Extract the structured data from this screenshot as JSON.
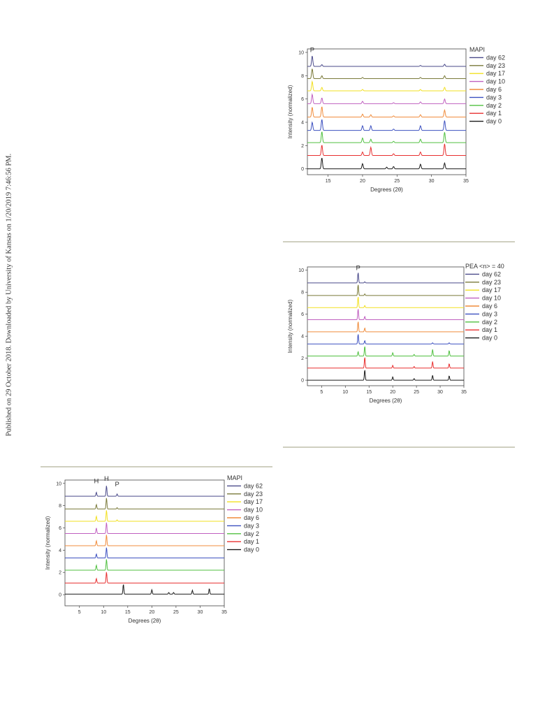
{
  "page": {
    "sidebar_text": "Published on 29 October 2018. Downloaded by University of Kansas on 1/20/2019 7:46:56 PM."
  },
  "chart_data": [
    {
      "type": "line",
      "title": "",
      "xlabel": "Degrees (2θ)",
      "ylabel": "Intensity (normalized)",
      "xlim": [
        12,
        35
      ],
      "ylim": [
        -0.5,
        10.3
      ],
      "xticks": [
        15,
        20,
        25,
        30,
        35
      ],
      "yticks": [
        0,
        2,
        4,
        6,
        8,
        10
      ],
      "grid": false,
      "legend_position": "right",
      "legend_title": "MAPI",
      "annotations": [
        {
          "text": "P",
          "x": 12.7,
          "y": 9.9
        }
      ],
      "series": [
        {
          "name": "day 62",
          "color": "#4a4a8a",
          "baseline": 8.8,
          "peaks": [
            [
              12.7,
              0.9
            ],
            [
              14.1,
              0.15
            ],
            [
              28.4,
              0.08
            ],
            [
              31.9,
              0.18
            ]
          ]
        },
        {
          "name": "day 23",
          "color": "#7a7a3a",
          "baseline": 7.75,
          "peaks": [
            [
              12.7,
              0.85
            ],
            [
              14.1,
              0.25
            ],
            [
              20.0,
              0.1
            ],
            [
              28.4,
              0.1
            ],
            [
              31.9,
              0.25
            ]
          ]
        },
        {
          "name": "day 17",
          "color": "#f2e020",
          "baseline": 6.7,
          "peaks": [
            [
              12.7,
              0.8
            ],
            [
              14.1,
              0.3
            ],
            [
              20.0,
              0.12
            ],
            [
              28.4,
              0.12
            ],
            [
              31.9,
              0.3
            ]
          ]
        },
        {
          "name": "day 10",
          "color": "#c060c0",
          "baseline": 5.6,
          "peaks": [
            [
              12.7,
              0.8
            ],
            [
              14.1,
              0.5
            ],
            [
              20.0,
              0.2
            ],
            [
              24.5,
              0.08
            ],
            [
              28.4,
              0.15
            ],
            [
              31.9,
              0.4
            ]
          ]
        },
        {
          "name": "day 6",
          "color": "#f08c3c",
          "baseline": 4.45,
          "peaks": [
            [
              12.7,
              0.85
            ],
            [
              14.1,
              0.9
            ],
            [
              20.0,
              0.25
            ],
            [
              21.2,
              0.2
            ],
            [
              24.5,
              0.1
            ],
            [
              28.4,
              0.2
            ],
            [
              31.9,
              0.6
            ]
          ]
        },
        {
          "name": "day 3",
          "color": "#3c50c0",
          "baseline": 3.3,
          "peaks": [
            [
              12.7,
              0.7
            ],
            [
              14.1,
              0.95
            ],
            [
              20.0,
              0.4
            ],
            [
              21.2,
              0.4
            ],
            [
              24.5,
              0.12
            ],
            [
              28.4,
              0.4
            ],
            [
              31.9,
              0.85
            ]
          ]
        },
        {
          "name": "day 2",
          "color": "#50c040",
          "baseline": 2.25,
          "peaks": [
            [
              14.1,
              0.95
            ],
            [
              20.0,
              0.4
            ],
            [
              21.2,
              0.3
            ],
            [
              24.5,
              0.12
            ],
            [
              28.4,
              0.3
            ],
            [
              31.9,
              0.9
            ]
          ]
        },
        {
          "name": "day 1",
          "color": "#e83030",
          "baseline": 1.15,
          "peaks": [
            [
              14.1,
              0.9
            ],
            [
              20.0,
              0.3
            ],
            [
              21.2,
              0.7
            ],
            [
              24.5,
              0.15
            ],
            [
              28.4,
              0.3
            ],
            [
              31.9,
              1.0
            ]
          ]
        },
        {
          "name": "day 0",
          "color": "#1a1a1a",
          "baseline": 0.0,
          "peaks": [
            [
              14.1,
              0.95
            ],
            [
              20.0,
              0.45
            ],
            [
              23.5,
              0.15
            ],
            [
              24.5,
              0.2
            ],
            [
              28.4,
              0.4
            ],
            [
              31.9,
              0.5
            ]
          ]
        }
      ]
    },
    {
      "type": "line",
      "title": "",
      "xlabel": "Degrees (2θ)",
      "ylabel": "Intensity (normalized)",
      "xlim": [
        2,
        35
      ],
      "ylim": [
        -0.5,
        10.3
      ],
      "xticks": [
        5,
        10,
        15,
        20,
        25,
        30,
        35
      ],
      "yticks": [
        0,
        2,
        4,
        6,
        8,
        10
      ],
      "grid": false,
      "legend_position": "right",
      "legend_title": "PEA <n> = 40",
      "annotations": [
        {
          "text": "P",
          "x": 12.7,
          "y": 9.9
        }
      ],
      "series": [
        {
          "name": "day 62",
          "color": "#4a4a8a",
          "baseline": 8.85,
          "peaks": [
            [
              12.7,
              0.95
            ],
            [
              14.1,
              0.1
            ]
          ]
        },
        {
          "name": "day 23",
          "color": "#7a7a3a",
          "baseline": 7.7,
          "peaks": [
            [
              12.7,
              1.0
            ],
            [
              14.1,
              0.15
            ]
          ]
        },
        {
          "name": "day 17",
          "color": "#f2e020",
          "baseline": 6.6,
          "peaks": [
            [
              12.7,
              1.0
            ],
            [
              14.1,
              0.2
            ]
          ]
        },
        {
          "name": "day 10",
          "color": "#c060c0",
          "baseline": 5.5,
          "peaks": [
            [
              12.7,
              1.0
            ],
            [
              14.1,
              0.3
            ]
          ]
        },
        {
          "name": "day 6",
          "color": "#f08c3c",
          "baseline": 4.4,
          "peaks": [
            [
              12.7,
              0.95
            ],
            [
              14.1,
              0.35
            ]
          ]
        },
        {
          "name": "day 3",
          "color": "#3c50c0",
          "baseline": 3.3,
          "peaks": [
            [
              12.7,
              0.9
            ],
            [
              14.1,
              0.3
            ],
            [
              28.4,
              0.1
            ],
            [
              31.9,
              0.1
            ]
          ]
        },
        {
          "name": "day 2",
          "color": "#50c040",
          "baseline": 2.2,
          "peaks": [
            [
              12.7,
              0.4
            ],
            [
              14.1,
              0.9
            ],
            [
              20.0,
              0.3
            ],
            [
              24.5,
              0.15
            ],
            [
              28.4,
              0.6
            ],
            [
              31.9,
              0.5
            ]
          ]
        },
        {
          "name": "day 1",
          "color": "#e83030",
          "baseline": 1.1,
          "peaks": [
            [
              14.1,
              1.0
            ],
            [
              20.0,
              0.25
            ],
            [
              24.5,
              0.15
            ],
            [
              28.4,
              0.6
            ],
            [
              31.9,
              0.4
            ]
          ]
        },
        {
          "name": "day 0",
          "color": "#1a1a1a",
          "baseline": 0.0,
          "peaks": [
            [
              14.1,
              0.95
            ],
            [
              20.0,
              0.3
            ],
            [
              24.5,
              0.15
            ],
            [
              28.4,
              0.45
            ],
            [
              31.9,
              0.4
            ]
          ]
        }
      ]
    },
    {
      "type": "line",
      "title": "",
      "xlabel": "Degrees (2θ)",
      "ylabel": "Intensity (normalized)",
      "xlim": [
        2,
        35
      ],
      "ylim": [
        -1,
        10.3
      ],
      "xticks": [
        5,
        10,
        15,
        20,
        25,
        30,
        35
      ],
      "yticks": [
        0,
        2,
        4,
        6,
        8,
        10
      ],
      "grid": false,
      "legend_position": "right",
      "legend_title": "MAPI",
      "annotations": [
        {
          "text": "H",
          "x": 8.5,
          "y": 9.9
        },
        {
          "text": "H",
          "x": 10.6,
          "y": 10.1
        },
        {
          "text": "P",
          "x": 12.8,
          "y": 9.6
        }
      ],
      "series": [
        {
          "name": "day 62",
          "color": "#4a4a8a",
          "baseline": 8.85,
          "peaks": [
            [
              8.5,
              0.35
            ],
            [
              10.6,
              0.95
            ],
            [
              12.8,
              0.2
            ]
          ]
        },
        {
          "name": "day 23",
          "color": "#7a7a3a",
          "baseline": 7.7,
          "peaks": [
            [
              8.5,
              0.4
            ],
            [
              10.6,
              1.0
            ],
            [
              12.8,
              0.12
            ]
          ]
        },
        {
          "name": "day 17",
          "color": "#f2e020",
          "baseline": 6.6,
          "peaks": [
            [
              8.5,
              0.45
            ],
            [
              10.6,
              1.0
            ],
            [
              12.8,
              0.12
            ]
          ]
        },
        {
          "name": "day 10",
          "color": "#c060c0",
          "baseline": 5.5,
          "peaks": [
            [
              8.5,
              0.5
            ],
            [
              10.6,
              1.0
            ]
          ]
        },
        {
          "name": "day 6",
          "color": "#f08c3c",
          "baseline": 4.4,
          "peaks": [
            [
              8.5,
              0.45
            ],
            [
              10.6,
              1.0
            ]
          ]
        },
        {
          "name": "day 3",
          "color": "#3c50c0",
          "baseline": 3.3,
          "peaks": [
            [
              8.5,
              0.35
            ],
            [
              10.6,
              0.95
            ]
          ]
        },
        {
          "name": "day 2",
          "color": "#50c040",
          "baseline": 2.2,
          "peaks": [
            [
              8.5,
              0.45
            ],
            [
              10.6,
              1.0
            ]
          ]
        },
        {
          "name": "day 1",
          "color": "#e83030",
          "baseline": 1.05,
          "peaks": [
            [
              8.5,
              0.4
            ],
            [
              10.6,
              1.0
            ]
          ]
        },
        {
          "name": "day 0",
          "color": "#1a1a1a",
          "baseline": 0.05,
          "peaks": [
            [
              14.1,
              0.9
            ],
            [
              20.0,
              0.4
            ],
            [
              23.5,
              0.15
            ],
            [
              24.5,
              0.15
            ],
            [
              28.4,
              0.35
            ],
            [
              31.9,
              0.5
            ]
          ]
        }
      ]
    }
  ]
}
